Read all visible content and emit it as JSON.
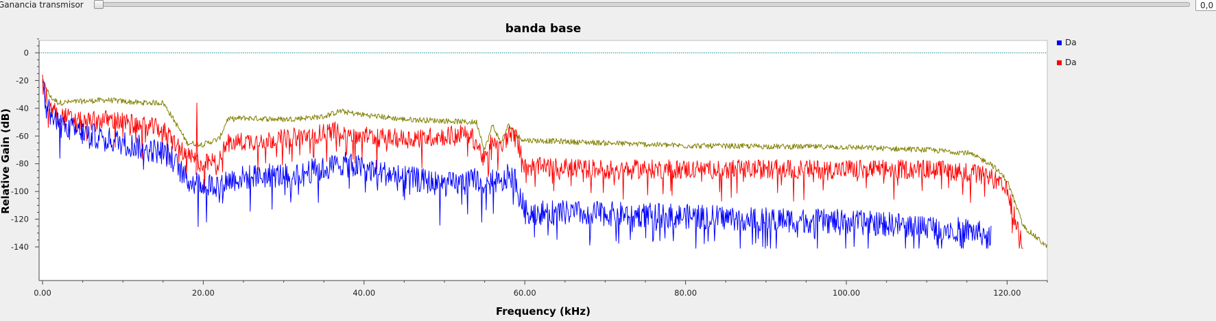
{
  "control": {
    "slider_label": "Ganancia transmisor",
    "value_text": "0,0",
    "slider_level": 0.0
  },
  "plot": {
    "title": "banda base",
    "legend": [
      {
        "label": "Da",
        "color": "#0000ff"
      },
      {
        "label": "Da",
        "color": "#ff0000"
      }
    ]
  },
  "chart_data": {
    "type": "line",
    "title": "banda base",
    "xlabel": "Frequency (kHz)",
    "ylabel": "Relative Gain (dB)",
    "xlim": [
      0,
      125
    ],
    "ylim": [
      -140,
      12
    ],
    "x_tick_labels": [
      "0.00",
      "20.00",
      "40.00",
      "60.00",
      "80.00",
      "100.00",
      "120.00"
    ],
    "y_tick_labels": [
      "0",
      "-20",
      "-40",
      "-60",
      "-80",
      "-100",
      "-120",
      "-140"
    ],
    "reference_line": {
      "y": 0,
      "color": "#008080",
      "style": "dotted"
    },
    "x_knots": [
      0,
      1,
      2,
      5,
      8,
      12,
      15,
      16,
      18,
      20,
      22,
      23,
      25,
      30,
      35,
      37,
      39,
      45,
      50,
      53,
      54,
      55,
      56,
      57,
      58,
      59,
      60,
      70,
      80,
      100,
      110,
      115,
      118,
      120,
      122,
      125
    ],
    "series": [
      {
        "name": "Da",
        "color": "#0000ff",
        "noise": 9,
        "end_x": 118,
        "values": [
          -25,
          -45,
          -52,
          -58,
          -62,
          -68,
          -72,
          -75,
          -92,
          -95,
          -95,
          -92,
          -90,
          -88,
          -84,
          -80,
          -82,
          -90,
          -95,
          -94,
          -90,
          -102,
          -90,
          -96,
          -88,
          -92,
          -115,
          -116,
          -118,
          -122,
          -125,
          -128,
          -132,
          -140,
          -140,
          -140
        ]
      },
      {
        "name": "Da",
        "color": "#ff0000",
        "noise": 7,
        "end_x": 122,
        "values": [
          -22,
          -40,
          -45,
          -50,
          -48,
          -52,
          -55,
          -62,
          -75,
          -80,
          -78,
          -65,
          -64,
          -62,
          -58,
          -55,
          -60,
          -62,
          -60,
          -58,
          -65,
          -78,
          -60,
          -70,
          -58,
          -62,
          -82,
          -84,
          -84,
          -84,
          -84,
          -86,
          -90,
          -100,
          -140,
          -140
        ]
      },
      {
        "name": "",
        "color": "#808000",
        "noise": 2,
        "end_x": 125,
        "values": [
          -20,
          -32,
          -36,
          -35,
          -34,
          -36,
          -36,
          -45,
          -65,
          -66,
          -62,
          -48,
          -47,
          -48,
          -46,
          -42,
          -44,
          -48,
          -49,
          -50,
          -50,
          -70,
          -52,
          -65,
          -52,
          -60,
          -63,
          -65,
          -67,
          -68,
          -70,
          -72,
          -80,
          -92,
          -125,
          -140
        ]
      }
    ]
  }
}
